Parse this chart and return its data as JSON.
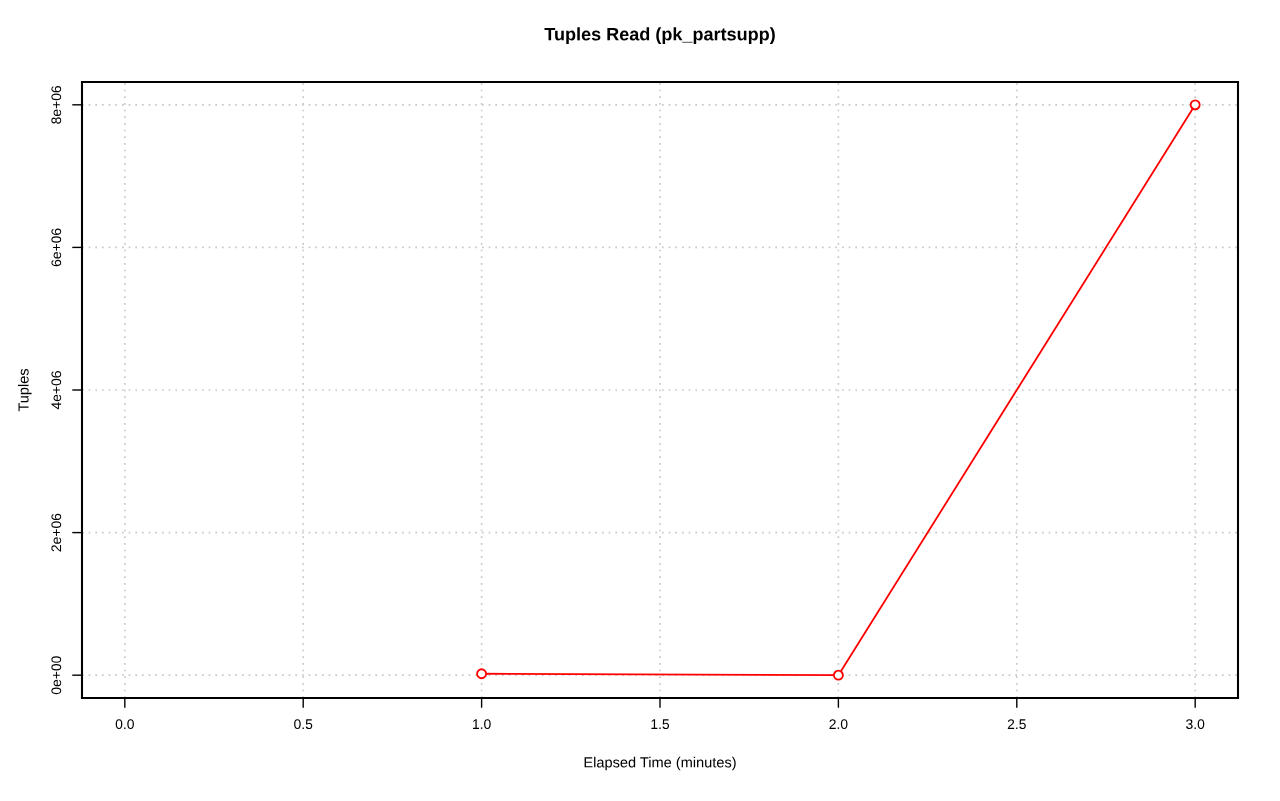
{
  "chart_data": {
    "type": "line",
    "title": "Tuples Read (pk_partsupp)",
    "xlabel": "Elapsed Time (minutes)",
    "ylabel": "Tuples",
    "x": [
      1,
      2,
      3
    ],
    "series": [
      {
        "color": "#ff0000",
        "values": [
          20000,
          0,
          8000000
        ]
      }
    ],
    "xlim": [
      -0.12,
      3.12
    ],
    "ylim": [
      -320000,
      8320000
    ],
    "xticks": [
      {
        "value": 0,
        "label": "0.0"
      },
      {
        "value": 0.5,
        "label": "0.5"
      },
      {
        "value": 1,
        "label": "1.0"
      },
      {
        "value": 1.5,
        "label": "1.5"
      },
      {
        "value": 2,
        "label": "2.0"
      },
      {
        "value": 2.5,
        "label": "2.5"
      },
      {
        "value": 3,
        "label": "3.0"
      }
    ],
    "yticks": [
      {
        "value": 0,
        "label": "0e+00"
      },
      {
        "value": 2000000,
        "label": "2e+06"
      },
      {
        "value": 4000000,
        "label": "4e+06"
      },
      {
        "value": 6000000,
        "label": "6e+06"
      },
      {
        "value": 8000000,
        "label": "8e+06"
      }
    ],
    "grid": true,
    "marker": "circle",
    "line_style": "solid"
  }
}
